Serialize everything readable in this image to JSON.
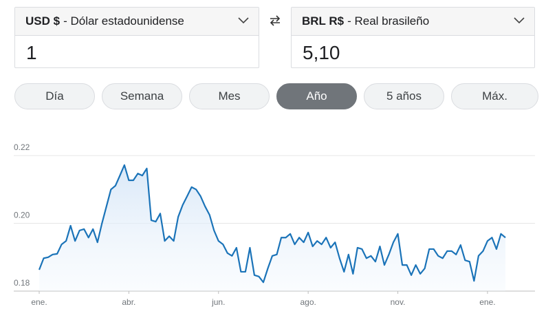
{
  "from": {
    "code": "USD $",
    "name": "- Dólar estadounidense",
    "amount": "1"
  },
  "to": {
    "code": "BRL R$",
    "name": "- Real brasileño",
    "amount": "5,10"
  },
  "ranges": [
    "Día",
    "Semana",
    "Mes",
    "Año",
    "5 años",
    "Máx."
  ],
  "selected_range": 3,
  "chart_data": {
    "type": "line",
    "x": [
      0,
      1,
      2,
      3,
      4,
      5,
      6,
      7,
      8,
      9,
      10,
      11,
      12,
      13,
      14,
      15,
      16,
      17,
      18,
      19,
      20,
      21,
      22,
      23,
      24,
      25,
      26,
      27,
      28,
      29,
      30,
      31,
      32,
      33,
      34,
      35,
      36,
      37,
      38,
      39,
      40,
      41,
      42,
      43,
      44,
      45,
      46,
      47,
      48,
      49,
      50,
      51,
      52,
      53,
      54,
      55,
      56,
      57,
      58,
      59,
      60,
      61,
      62,
      63,
      64,
      65,
      66,
      67,
      68,
      69,
      70,
      71,
      72,
      73,
      74,
      75,
      76,
      77,
      78,
      79,
      80,
      81,
      82,
      83,
      84,
      85,
      86,
      87,
      88,
      89,
      90,
      91,
      92,
      93,
      94,
      95,
      96,
      97,
      98,
      99,
      100,
      101,
      102,
      103,
      104
    ],
    "series": [
      {
        "name": "USD/BRL",
        "color": "#1a73b8",
        "values": [
          0.1863,
          0.1897,
          0.19,
          0.1908,
          0.191,
          0.1938,
          0.1948,
          0.1993,
          0.1948,
          0.1979,
          0.1983,
          0.1958,
          0.1983,
          0.1944,
          0.2,
          0.205,
          0.21,
          0.2111,
          0.2141,
          0.2172,
          0.2127,
          0.2127,
          0.2147,
          0.2141,
          0.2162,
          0.2009,
          0.2005,
          0.2029,
          0.1948,
          0.1962,
          0.1948,
          0.2019,
          0.2054,
          0.208,
          0.2107,
          0.21,
          0.208,
          0.205,
          0.2025,
          0.1979,
          0.1948,
          0.1938,
          0.1912,
          0.1904,
          0.1928,
          0.1857,
          0.1857,
          0.1928,
          0.1847,
          0.1843,
          0.1826,
          0.1867,
          0.1904,
          0.1908,
          0.1958,
          0.1958,
          0.1969,
          0.1938,
          0.1958,
          0.1944,
          0.1973,
          0.1932,
          0.1948,
          0.1938,
          0.1958,
          0.1928,
          0.1944,
          0.1897,
          0.1857,
          0.1908,
          0.1851,
          0.1928,
          0.1924,
          0.1897,
          0.1904,
          0.1887,
          0.1932,
          0.1877,
          0.1908,
          0.1944,
          0.1969,
          0.1877,
          0.1877,
          0.1847,
          0.1877,
          0.1851,
          0.1867,
          0.1924,
          0.1924,
          0.1904,
          0.1897,
          0.1918,
          0.1918,
          0.1908,
          0.1936,
          0.1891,
          0.1887,
          0.183,
          0.1904,
          0.1918,
          0.1948,
          0.1958,
          0.1924,
          0.1969,
          0.1958
        ]
      }
    ],
    "xlim": [
      0,
      104
    ],
    "xticks": [
      {
        "value": 0,
        "label": "ene."
      },
      {
        "value": 20,
        "label": "abr."
      },
      {
        "value": 40,
        "label": "jun."
      },
      {
        "value": 60,
        "label": "ago."
      },
      {
        "value": 80,
        "label": "nov."
      },
      {
        "value": 100,
        "label": "ene."
      }
    ],
    "ylim": [
      0.18,
      0.2253
    ],
    "yticks": [
      {
        "value": 0.18,
        "label": "0.18"
      },
      {
        "value": 0.2,
        "label": "0.20"
      },
      {
        "value": 0.22,
        "label": "0.22"
      }
    ],
    "grid": true
  }
}
